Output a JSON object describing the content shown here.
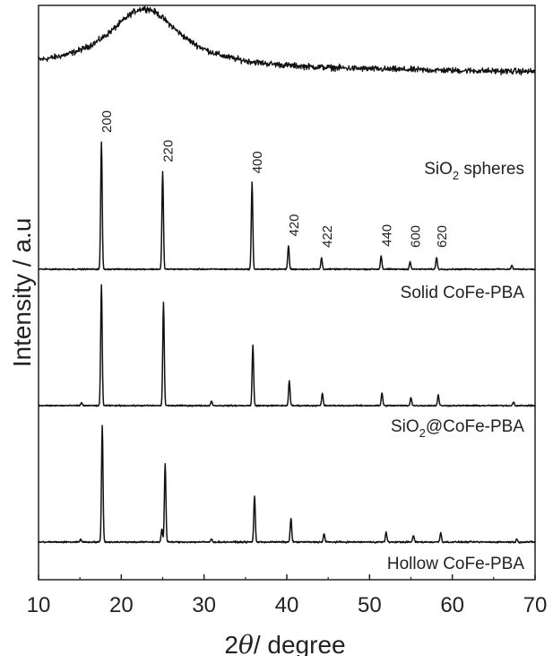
{
  "chart_data": {
    "type": "line",
    "title": "",
    "xlabel_pre": "2",
    "xlabel_theta": "θ",
    "xlabel_post": "/ degree",
    "ylabel": "Intensity / a.u",
    "xlim": [
      10,
      70
    ],
    "x_ticks": [
      "10",
      "20",
      "30",
      "40",
      "50",
      "60",
      "70"
    ],
    "y_ticks": [],
    "grid": false,
    "legend": "none",
    "line_color": "#111111",
    "series": [
      {
        "name": "SiO₂ spheres",
        "label_main": "SiO",
        "label_sub": "2",
        "label_post": " spheres",
        "kind": "amorphous",
        "baseline": 1.7,
        "hump": {
          "center": 22.8,
          "width": 5.2,
          "height": 1.5
        },
        "slope": 0.0016,
        "noise": 0.11,
        "peaks": []
      },
      {
        "name": "Solid CoFe-PBA",
        "label": "Solid CoFe-PBA",
        "kind": "crystalline",
        "baseline": 0,
        "noise": 0.025,
        "peaks": [
          {
            "x": 17.6,
            "h": 3.38,
            "hkl": "200"
          },
          {
            "x": 25.0,
            "h": 2.6,
            "hkl": "220"
          },
          {
            "x": 35.8,
            "h": 2.3,
            "hkl": "400"
          },
          {
            "x": 40.2,
            "h": 0.63,
            "hkl": "420"
          },
          {
            "x": 44.2,
            "h": 0.3,
            "hkl": "422"
          },
          {
            "x": 51.4,
            "h": 0.36,
            "hkl": "440"
          },
          {
            "x": 54.9,
            "h": 0.2,
            "hkl": "600"
          },
          {
            "x": 58.1,
            "h": 0.32,
            "hkl": "620"
          },
          {
            "x": 67.2,
            "h": 0.1,
            "hkl": ""
          }
        ]
      },
      {
        "name": "SiO₂@CoFe-PBA",
        "label_main": "SiO",
        "label_sub": "2",
        "label_post": "@CoFe-PBA",
        "kind": "crystalline",
        "baseline": 0,
        "noise": 0.025,
        "peaks": [
          {
            "x": 15.2,
            "h": 0.08
          },
          {
            "x": 17.6,
            "h": 3.2
          },
          {
            "x": 25.1,
            "h": 2.74
          },
          {
            "x": 30.9,
            "h": 0.13
          },
          {
            "x": 35.9,
            "h": 1.6
          },
          {
            "x": 40.3,
            "h": 0.66
          },
          {
            "x": 44.3,
            "h": 0.32
          },
          {
            "x": 51.5,
            "h": 0.34
          },
          {
            "x": 55.0,
            "h": 0.22
          },
          {
            "x": 58.3,
            "h": 0.29
          },
          {
            "x": 67.4,
            "h": 0.1
          }
        ]
      },
      {
        "name": "Hollow CoFe-PBA",
        "label": "Hollow CoFe-PBA",
        "kind": "crystalline",
        "baseline": 0,
        "noise": 0.03,
        "peaks": [
          {
            "x": 15.1,
            "h": 0.08
          },
          {
            "x": 17.7,
            "h": 3.1
          },
          {
            "x": 24.9,
            "h": 0.35
          },
          {
            "x": 25.3,
            "h": 2.1
          },
          {
            "x": 30.9,
            "h": 0.08
          },
          {
            "x": 36.1,
            "h": 1.23
          },
          {
            "x": 40.5,
            "h": 0.64
          },
          {
            "x": 44.5,
            "h": 0.22
          },
          {
            "x": 52.0,
            "h": 0.26
          },
          {
            "x": 55.3,
            "h": 0.18
          },
          {
            "x": 58.6,
            "h": 0.25
          },
          {
            "x": 67.8,
            "h": 0.07
          }
        ]
      }
    ]
  }
}
